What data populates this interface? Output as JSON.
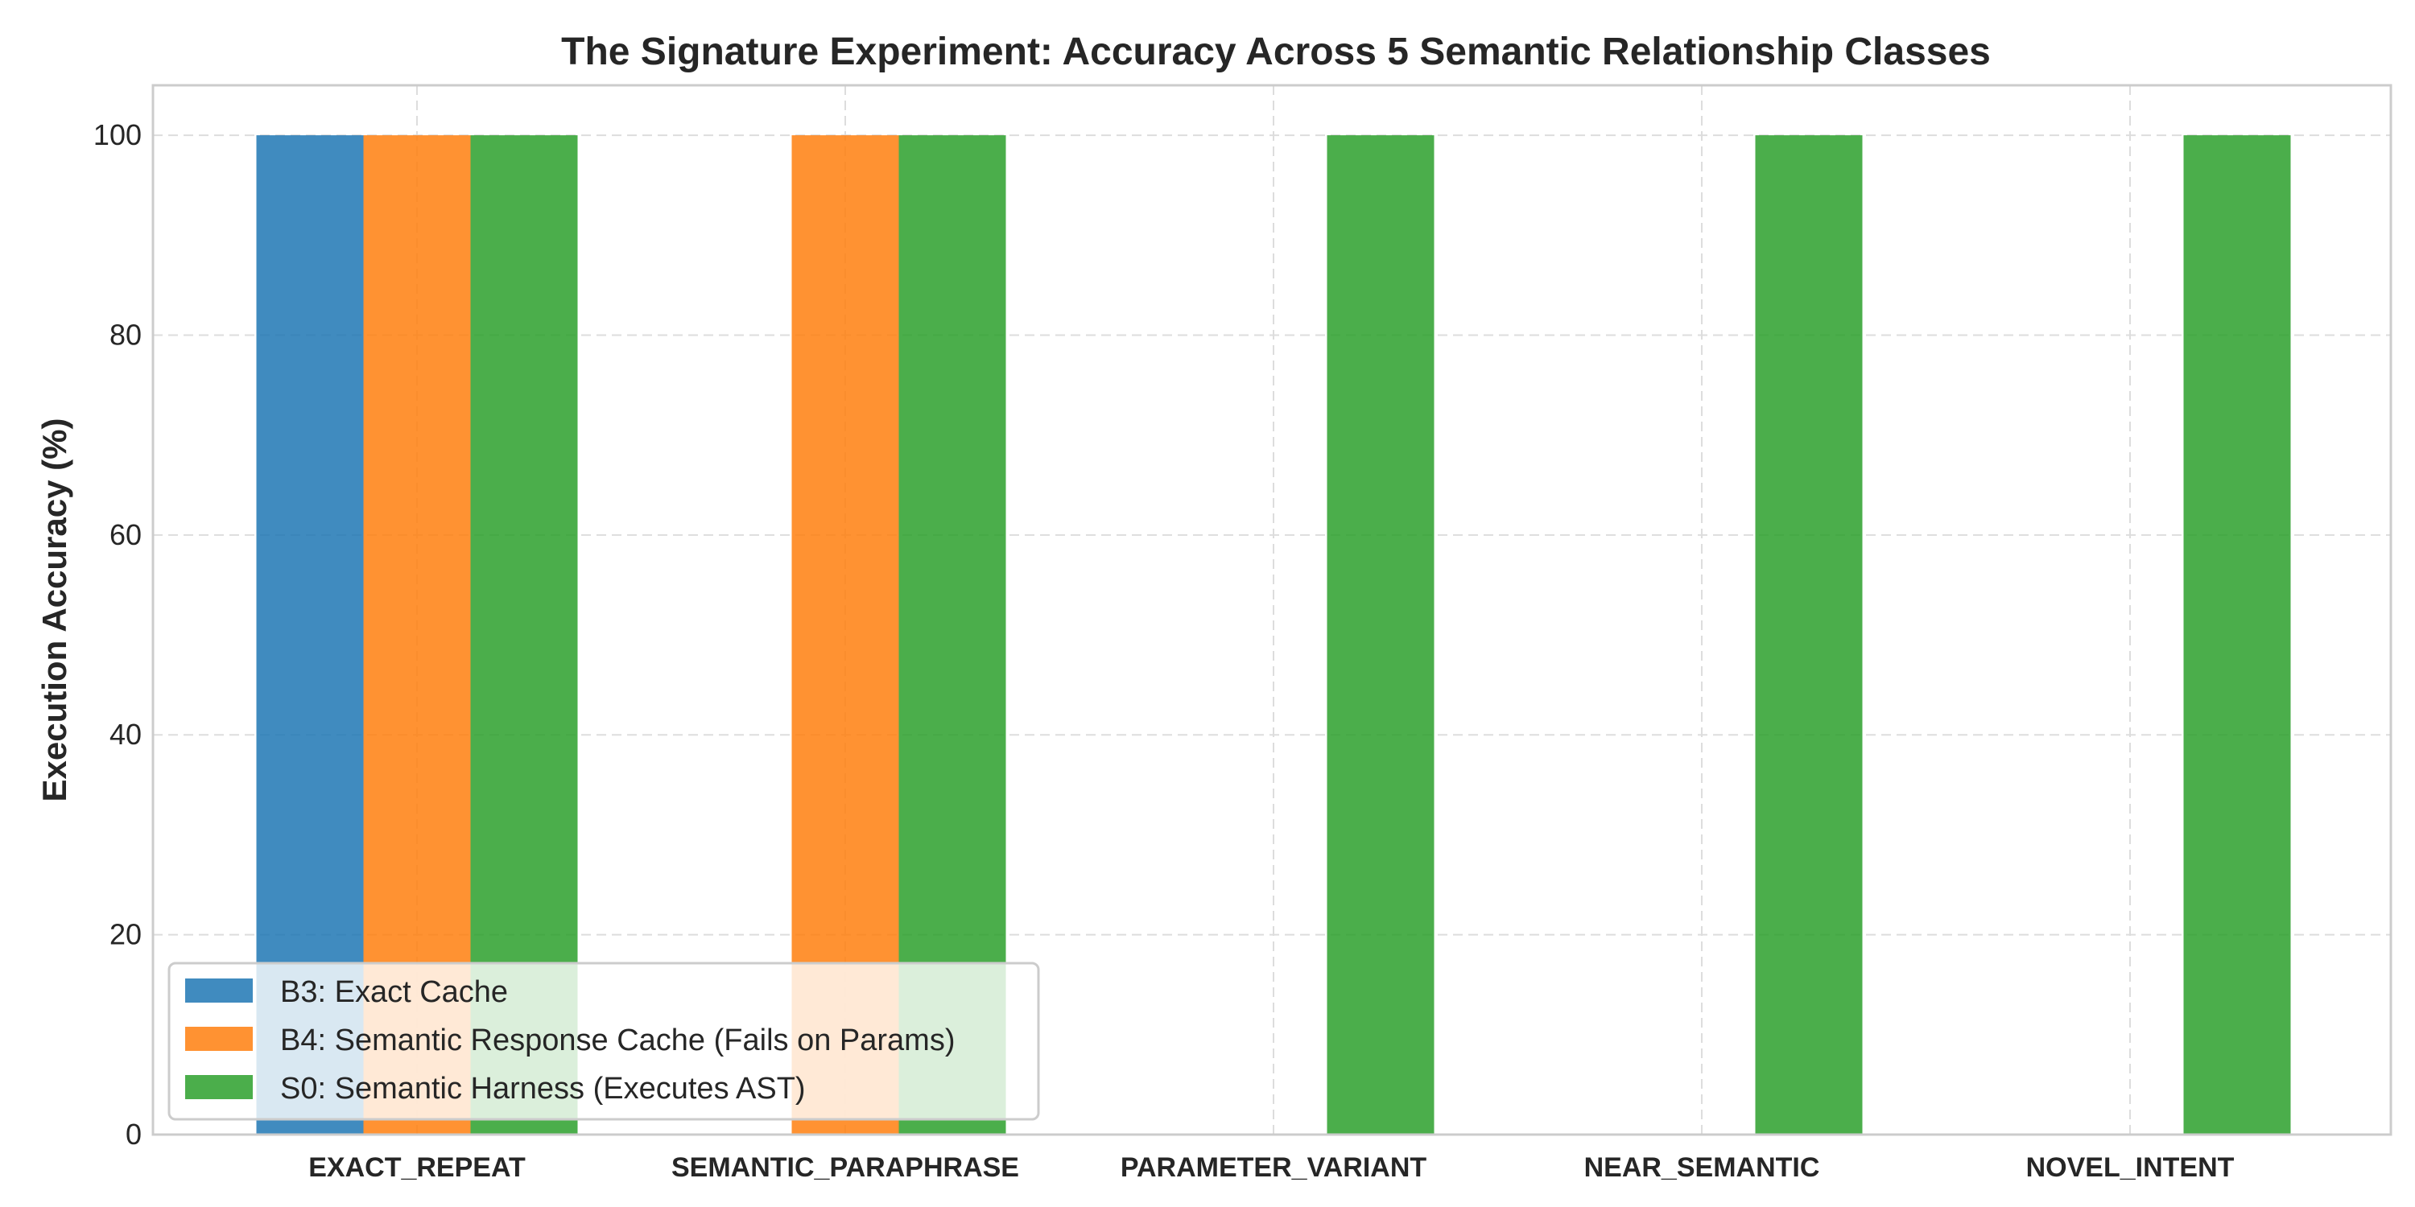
{
  "chart_data": {
    "type": "bar",
    "title": "The Signature Experiment: Accuracy Across 5 Semantic Relationship Classes",
    "xlabel": "",
    "ylabel": "Execution Accuracy (%)",
    "ylim": [
      0,
      105
    ],
    "yticks": [
      0,
      20,
      40,
      60,
      80,
      100
    ],
    "grid": true,
    "legend_position": "lower-left",
    "categories": [
      "EXACT_REPEAT",
      "SEMANTIC_PARAPHRASE",
      "PARAMETER_VARIANT",
      "NEAR_SEMANTIC",
      "NOVEL_INTENT"
    ],
    "series": [
      {
        "name": "B3: Exact Cache",
        "color": "#1f77b4",
        "values": [
          100,
          0,
          0,
          0,
          0
        ]
      },
      {
        "name": "B4: Semantic Response Cache (Fails on Params)",
        "color": "#ff7f0e",
        "values": [
          100,
          100,
          0,
          0,
          0
        ]
      },
      {
        "name": "S0: Semantic Harness (Executes AST)",
        "color": "#2ca02c",
        "values": [
          100,
          100,
          100,
          100,
          100
        ]
      }
    ]
  }
}
